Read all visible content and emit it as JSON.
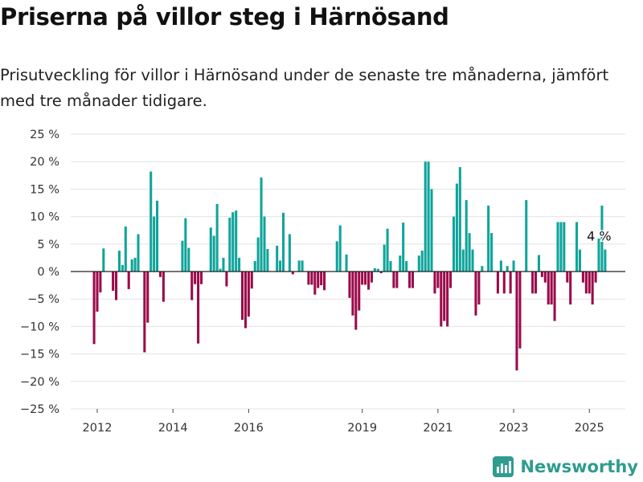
{
  "header": {
    "title": "Priserna på villor steg i Härnösand",
    "subtitle": "Prisutveckling för villor i Härnösand under de senaste tre månaderna, jämfört med tre månader tidigare."
  },
  "brand": {
    "name": "Newsworthy",
    "icon": "newsworthy-logo-icon",
    "color": "#2f9c8f"
  },
  "colors": {
    "positive": "#0fa49b",
    "negative": "#9b0a4b",
    "grid": "#e3e3e3",
    "zero_line": "#222222"
  },
  "chart_data": {
    "type": "bar",
    "title": "Priserna på villor steg i Härnösand",
    "ylabel": "",
    "xlabel": "",
    "ylim": [
      -25,
      25
    ],
    "xlim": [
      2011.3,
      2025.95
    ],
    "y_ticks": [
      25,
      20,
      15,
      10,
      5,
      0,
      -5,
      -10,
      -15,
      -20,
      -25
    ],
    "y_tick_labels": [
      "25 %",
      "20 %",
      "15 %",
      "10 %",
      "5 %",
      "0 %",
      "−5 %",
      "−10 %",
      "−15 %",
      "−20 %",
      "−25 %"
    ],
    "x_ticks": [
      2012,
      2014,
      2016,
      2019,
      2021,
      2023,
      2025
    ],
    "x_tick_labels": [
      "2012",
      "2014",
      "2016",
      "2019",
      "2021",
      "2023",
      "2025"
    ],
    "grid": "horizontal",
    "annotation": {
      "text": "4 %",
      "x": 2025.3,
      "y": 4
    },
    "x": [
      2011.917,
      2012.0,
      2012.083,
      2012.167,
      2012.25,
      2012.333,
      2012.417,
      2012.5,
      2012.583,
      2012.667,
      2012.75,
      2012.833,
      2012.917,
      2013.0,
      2013.083,
      2013.167,
      2013.25,
      2013.333,
      2013.417,
      2013.5,
      2013.583,
      2013.667,
      2013.75,
      2013.833,
      2013.917,
      2014.0,
      2014.083,
      2014.167,
      2014.25,
      2014.333,
      2014.417,
      2014.5,
      2014.583,
      2014.667,
      2014.75,
      2014.833,
      2014.917,
      2015.0,
      2015.083,
      2015.167,
      2015.25,
      2015.333,
      2015.417,
      2015.5,
      2015.583,
      2015.667,
      2015.75,
      2015.833,
      2015.917,
      2016.0,
      2016.083,
      2016.167,
      2016.25,
      2016.333,
      2016.417,
      2016.5,
      2016.583,
      2016.667,
      2016.75,
      2016.833,
      2016.917,
      2017.0,
      2017.083,
      2017.167,
      2017.25,
      2017.333,
      2017.417,
      2017.5,
      2017.583,
      2017.667,
      2017.75,
      2017.833,
      2017.917,
      2018.0,
      2018.083,
      2018.167,
      2018.25,
      2018.333,
      2018.417,
      2018.5,
      2018.583,
      2018.667,
      2018.75,
      2018.833,
      2018.917,
      2019.0,
      2019.083,
      2019.167,
      2019.25,
      2019.333,
      2019.417,
      2019.5,
      2019.583,
      2019.667,
      2019.75,
      2019.833,
      2019.917,
      2020.0,
      2020.083,
      2020.167,
      2020.25,
      2020.333,
      2020.417,
      2020.5,
      2020.583,
      2020.667,
      2020.75,
      2020.833,
      2020.917,
      2021.0,
      2021.083,
      2021.167,
      2021.25,
      2021.333,
      2021.417,
      2021.5,
      2021.583,
      2021.667,
      2021.75,
      2021.833,
      2021.917,
      2022.0,
      2022.083,
      2022.167,
      2022.25,
      2022.333,
      2022.417,
      2022.5,
      2022.583,
      2022.667,
      2022.75,
      2022.833,
      2022.917,
      2023.0,
      2023.083,
      2023.167,
      2023.25,
      2023.333,
      2023.417,
      2023.5,
      2023.583,
      2023.667,
      2023.75,
      2023.833,
      2023.917,
      2024.0,
      2024.083,
      2024.167,
      2024.25,
      2024.333,
      2024.417,
      2024.5,
      2024.583,
      2024.667,
      2024.75,
      2024.833,
      2024.917,
      2025.0,
      2025.083,
      2025.167,
      2025.25,
      2025.333,
      2025.417
    ],
    "values": [
      -13.2,
      -7.3,
      -3.8,
      4.2,
      0,
      0,
      -3.5,
      -5.2,
      3.8,
      1.2,
      8.2,
      -3.2,
      2.2,
      2.5,
      6.8,
      0,
      -14.7,
      -9.3,
      18.2,
      10,
      12.9,
      -1,
      -5.5,
      0,
      0,
      0,
      0,
      0,
      5.6,
      9.7,
      4.3,
      -5.2,
      -2.3,
      -13.1,
      -2.3,
      0,
      0,
      8,
      6.5,
      12.3,
      0.5,
      2.5,
      -2.7,
      9.8,
      10.8,
      11.1,
      2.5,
      -8.8,
      -10.3,
      -8.2,
      -3.1,
      1.9,
      6.2,
      17.1,
      10,
      4.1,
      0,
      0,
      4.7,
      2,
      10.7,
      0,
      6.8,
      -0.5,
      0,
      2,
      2,
      0,
      -2.4,
      -2.4,
      -4.2,
      -3,
      -2.5,
      -3.4,
      0,
      0,
      0,
      5.5,
      8.4,
      0,
      3.1,
      -4.8,
      -8,
      -10.6,
      -7.1,
      -2.4,
      -2.4,
      -3.3,
      -2,
      0.6,
      0.5,
      -0.3,
      4.9,
      7.8,
      1.9,
      -3,
      -3,
      2.9,
      8.9,
      1.9,
      -3,
      -3,
      0,
      2.9,
      3.8,
      20,
      20,
      15,
      -4,
      -3,
      -10,
      -9,
      -10,
      -3,
      10,
      16,
      19,
      4,
      13,
      7,
      4,
      -8,
      -6,
      1,
      0,
      12,
      7,
      0,
      -4,
      2,
      -4,
      1,
      -4,
      2,
      -18,
      -14,
      0,
      13,
      0,
      -4,
      -4,
      3,
      -1,
      -2,
      -6,
      -6,
      -9,
      9,
      9,
      9,
      -2,
      -6,
      0,
      9,
      4,
      -2,
      -4,
      -4,
      -6,
      -2,
      6,
      12,
      4
    ]
  }
}
